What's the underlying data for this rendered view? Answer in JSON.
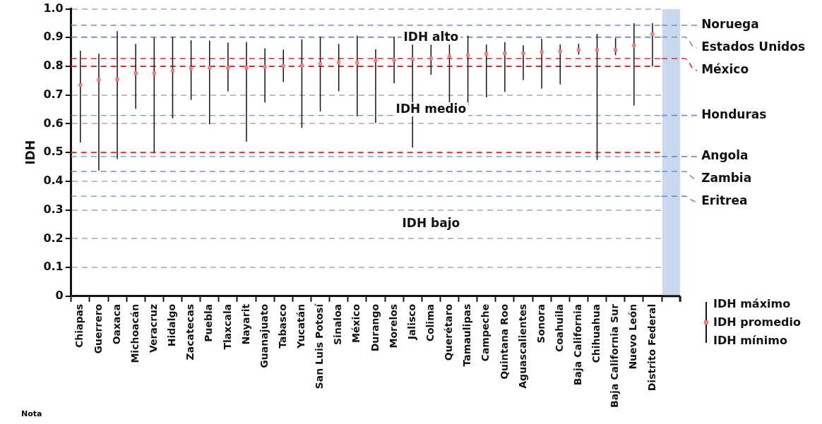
{
  "chart_data": {
    "type": "scatter",
    "ylabel": "IDH",
    "categories": [
      "Chiapas",
      "Guerrero",
      "Oaxaca",
      "Michoacán",
      "Veracruz",
      "Hidalgo",
      "Zacatecas",
      "Puebla",
      "Tlaxcala",
      "Nayarit",
      "Guanajuato",
      "Tabasco",
      "Yucatán",
      "San Luis Potosí",
      "Sinaloa",
      "México",
      "Durango",
      "Morelos",
      "Jalisco",
      "Colima",
      "Querétaro",
      "Tamaulipas",
      "Campeche",
      "Quintana Roo",
      "Aguascalientes",
      "Sonora",
      "Coahuila",
      "Baja California",
      "Chihuahua",
      "Baja California Sur",
      "Nuevo León",
      "Distrito Federal"
    ],
    "series": [
      {
        "name": "IDH promedio",
        "color": "#f08080",
        "values": [
          0.735,
          0.753,
          0.755,
          0.776,
          0.776,
          0.785,
          0.793,
          0.795,
          0.795,
          0.795,
          0.798,
          0.801,
          0.803,
          0.808,
          0.813,
          0.813,
          0.821,
          0.822,
          0.824,
          0.827,
          0.835,
          0.839,
          0.843,
          0.845,
          0.845,
          0.85,
          0.852,
          0.857,
          0.857,
          0.857,
          0.873,
          0.912
        ],
        "errors": [
          [
            0.535,
            0.855
          ],
          [
            0.437,
            0.844
          ],
          [
            0.477,
            0.922
          ],
          [
            0.652,
            0.878
          ],
          [
            0.5,
            0.9
          ],
          [
            0.619,
            0.903
          ],
          [
            0.683,
            0.891
          ],
          [
            0.598,
            0.89
          ],
          [
            0.712,
            0.883
          ],
          [
            0.538,
            0.885
          ],
          [
            0.674,
            0.863
          ],
          [
            0.745,
            0.858
          ],
          [
            0.586,
            0.894
          ],
          [
            0.643,
            0.902
          ],
          [
            0.713,
            0.878
          ],
          [
            0.626,
            0.907
          ],
          [
            0.603,
            0.859
          ],
          [
            0.741,
            0.903
          ],
          [
            0.517,
            0.89
          ],
          [
            0.771,
            0.9
          ],
          [
            0.654,
            0.899
          ],
          [
            0.663,
            0.907
          ],
          [
            0.692,
            0.876
          ],
          [
            0.711,
            0.884
          ],
          [
            0.752,
            0.873
          ],
          [
            0.723,
            0.896
          ],
          [
            0.737,
            0.876
          ],
          [
            0.841,
            0.879
          ],
          [
            0.474,
            0.913
          ],
          [
            0.839,
            0.899
          ],
          [
            0.664,
            0.95
          ],
          [
            0.8,
            0.95
          ]
        ]
      }
    ],
    "ylim": [
      0,
      1
    ],
    "yticks": [
      0,
      0.1,
      0.2,
      0.3,
      0.4,
      0.5,
      0.6,
      0.7,
      0.8,
      0.9,
      {
        "value": 1,
        "label": "1.0"
      }
    ],
    "grid": "y",
    "marker": "square",
    "legend": "bottom right",
    "ref_lines": [
      {
        "axis": "y",
        "value": 0.8,
        "color": "#e8262b",
        "line_style": "dashed"
      },
      {
        "axis": "y",
        "value": 0.5,
        "color": "#e8262b",
        "line_style": "dashed"
      },
      {
        "axis": "y",
        "value": 0.943,
        "label": "Noruega",
        "color": "#6b8fcf",
        "line_style": "dashed"
      },
      {
        "axis": "y",
        "value": 0.902,
        "label": "Estados Unidos",
        "color": "#6b8fcf",
        "line_style": "dashed"
      },
      {
        "axis": "y",
        "value": 0.827,
        "label": "México",
        "color": "#e8262b",
        "line_style": "dashed"
      },
      {
        "axis": "y",
        "value": 0.629,
        "label": "Honduras",
        "color": "#6b8fcf",
        "line_style": "dashed"
      },
      {
        "axis": "y",
        "value": 0.486,
        "label": "Angola",
        "color": "#6b8fcf",
        "line_style": "dashed"
      },
      {
        "axis": "y",
        "value": 0.434,
        "label": "Zambia",
        "color": "#6b8fcf",
        "line_style": "dashed"
      },
      {
        "axis": "y",
        "value": 0.348,
        "label": "Eritrea",
        "color": "#6b8fcf",
        "line_style": "dashed"
      }
    ],
    "annotations": [
      "IDH alto",
      "IDH medio",
      "IDH bajo",
      "IDH máximo",
      "IDH mínimo",
      "Nota"
    ]
  }
}
